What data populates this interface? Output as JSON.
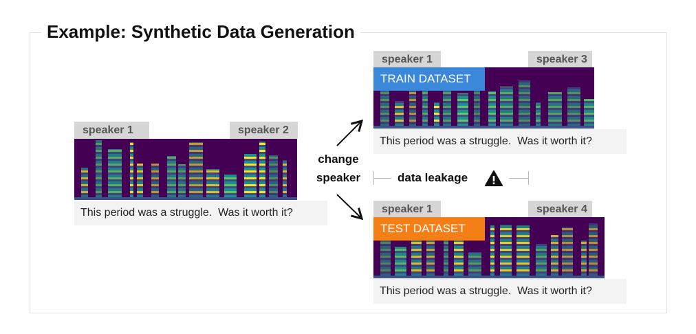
{
  "title": "Example: Synthetic Data Generation",
  "source": {
    "speakers": [
      "speaker 1",
      "speaker 2"
    ],
    "caption": "This period was a struggle.  Was it worth it?"
  },
  "transform": {
    "line1": "change",
    "line2": "speaker"
  },
  "train": {
    "label": "TRAIN DATASET",
    "speakers": [
      "speaker 1",
      "speaker 3"
    ],
    "caption": "This period was a struggle.  Was it worth it?",
    "color": "#3b87d9"
  },
  "test": {
    "label": "TEST DATASET",
    "speakers": [
      "speaker 1",
      "speaker 4"
    ],
    "caption": "This period was a struggle.  Was it worth it?",
    "color": "#f57f17"
  },
  "leakage": {
    "label": "data leakage",
    "icon": "warning-icon"
  },
  "colors": {
    "spectrogram_bg": "#440154",
    "viridis": [
      "#3b528b",
      "#21918c",
      "#5ec962",
      "#fde725"
    ]
  }
}
